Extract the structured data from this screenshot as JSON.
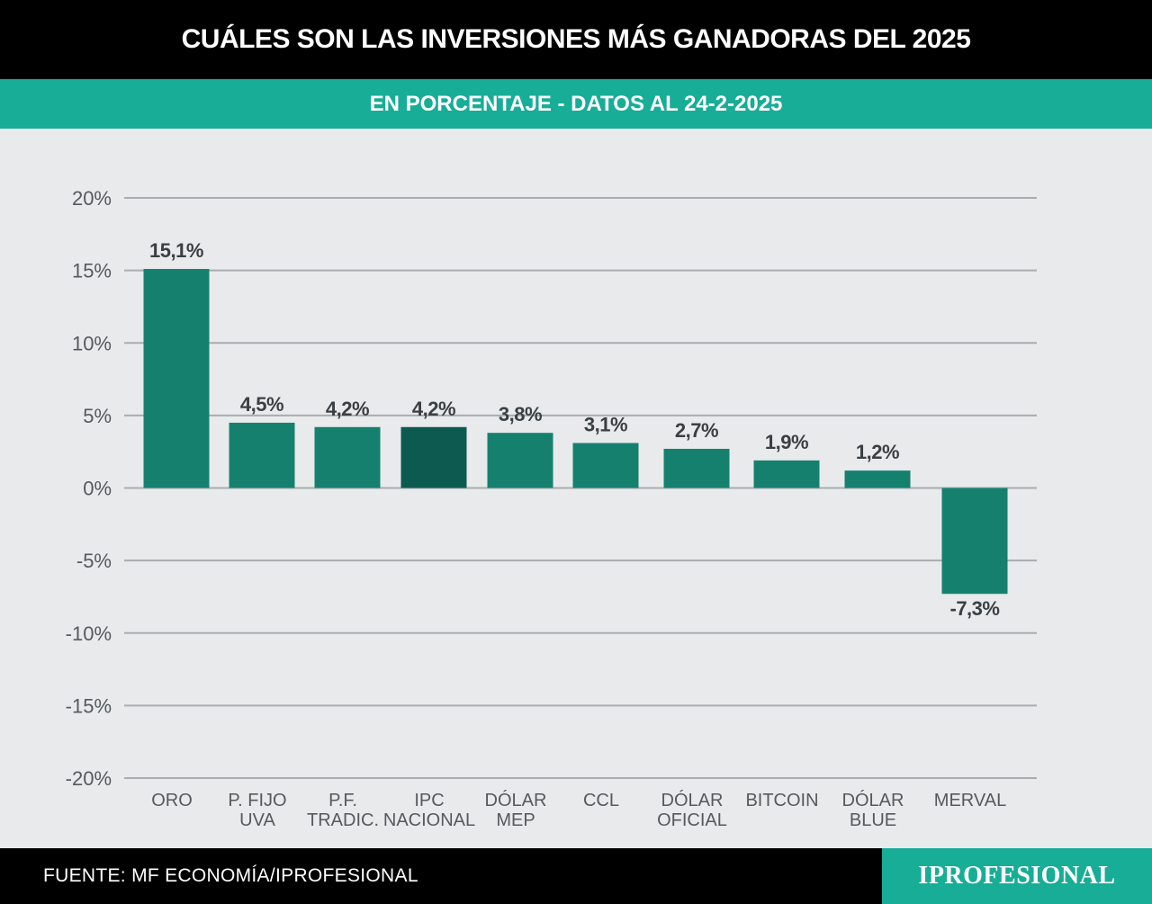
{
  "header": {
    "title": "CUÁLES SON LAS INVERSIONES MÁS GANADORAS DEL 2025",
    "subtitle": "EN PORCENTAJE - DATOS AL 24-2-2025"
  },
  "colors": {
    "accent": "#17ad97",
    "bar": "#16806f",
    "bar_highlight": "#0d5b50",
    "grid": "#a9adb0",
    "tick_text": "#555a5e",
    "value_text": "#3a3f43"
  },
  "chart_data": {
    "type": "bar",
    "title": "CUÁLES SON LAS INVERSIONES MÁS GANADORAS DEL 2025",
    "subtitle": "EN PORCENTAJE - DATOS AL 24-2-2025",
    "categories": [
      [
        "ORO"
      ],
      [
        "P. FIJO",
        "UVA"
      ],
      [
        "P.F.",
        "TRADIC."
      ],
      [
        "IPC",
        "NACIONAL"
      ],
      [
        "DÓLAR",
        "MEP"
      ],
      [
        "CCL"
      ],
      [
        "DÓLAR",
        "OFICIAL"
      ],
      [
        "BITCOIN"
      ],
      [
        "DÓLAR",
        "BLUE"
      ],
      [
        "MERVAL"
      ]
    ],
    "values": [
      15.1,
      4.5,
      4.2,
      4.2,
      3.8,
      3.1,
      2.7,
      1.9,
      1.2,
      -7.3
    ],
    "value_labels": [
      "15,1%",
      "4,5%",
      "4,2%",
      "4,2%",
      "3,8%",
      "3,1%",
      "2,7%",
      "1,9%",
      "1,2%",
      "-7,3%"
    ],
    "highlight_index": 3,
    "yticks": [
      20,
      15,
      10,
      5,
      0,
      -5,
      -10,
      -15,
      -20
    ],
    "ytick_labels": [
      "20%",
      "15%",
      "10%",
      "5%",
      "0%",
      "-5%",
      "-10%",
      "-15%",
      "-20%"
    ],
    "ylim": [
      -20,
      20
    ],
    "xlabel": "",
    "ylabel": "",
    "grid": true
  },
  "footer": {
    "source": "FUENTE: MF ECONOMÍA/IPROFESIONAL",
    "logo": "IPROFESIONAL"
  }
}
